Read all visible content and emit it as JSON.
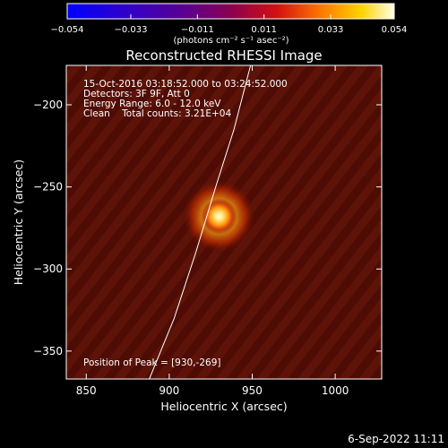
{
  "chart_data": {
    "type": "heatmap",
    "title": "Reconstructed RHESSI Image",
    "xlabel": "Heliocentric X (arcsec)",
    "ylabel": "Heliocentric Y (arcsec)",
    "xlim": [
      838,
      1028
    ],
    "ylim": [
      -367,
      -176
    ],
    "x_ticks": [
      "850",
      "900",
      "950",
      "1000"
    ],
    "y_ticks": [
      "-200",
      "-250",
      "-300",
      "-350"
    ],
    "colorbar": {
      "range": [
        -0.054,
        0.054
      ],
      "ticks": [
        "-0.054",
        "-0.033",
        "-0.011",
        "0.011",
        "0.033",
        "0.054"
      ],
      "unit_label": "(photons cm⁻² s⁻¹ asec⁻²)",
      "colormap": "rhessi-hot"
    },
    "annotations": [
      "15-Oct-2016 03:18:52.000 to 03:24:52.000",
      "Detectors: 3F 9F, Att 0",
      "Energy Range: 6.0 - 12.0 keV",
      "Clean    Total counts: 3.21E+04"
    ],
    "peak_label": "Position of Peak = [930,-269]",
    "peak": {
      "x": 930,
      "y": -269
    },
    "limb_points": [
      [
        888,
        -367
      ],
      [
        903,
        -330
      ],
      [
        916,
        -290
      ],
      [
        928,
        -250
      ],
      [
        939,
        -215
      ],
      [
        949,
        -176
      ]
    ],
    "colors": {
      "background": "#000000",
      "foreground": "#ffffff"
    }
  },
  "footer": {
    "date": "6-Sep-2022 11:11"
  }
}
